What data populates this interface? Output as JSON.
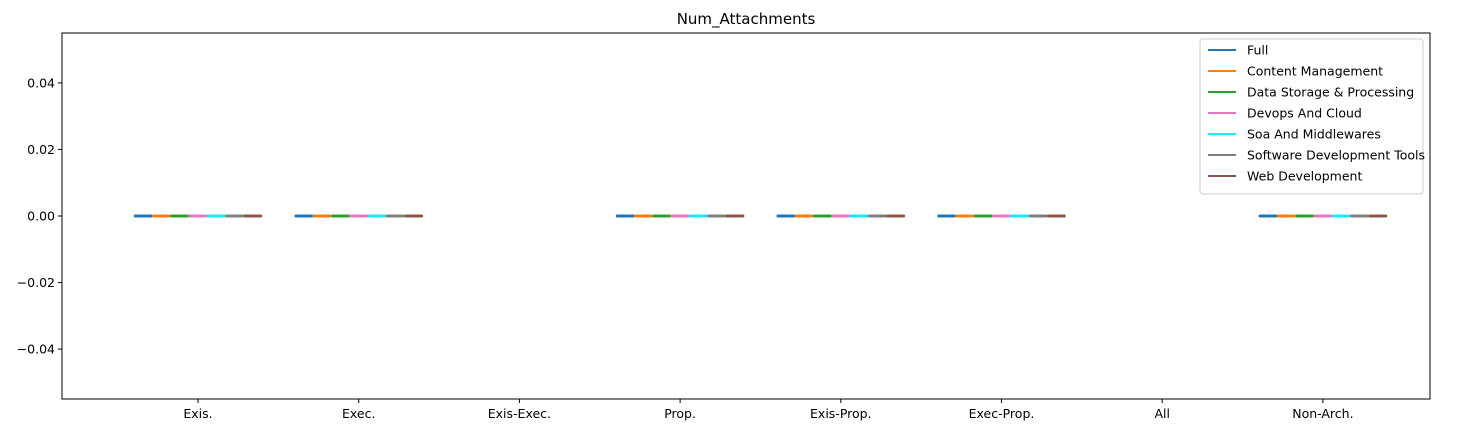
{
  "chart_data": {
    "type": "box",
    "title": "Num_Attachments",
    "xlabel": "",
    "ylabel": "",
    "categories": [
      "Exis.",
      "Exec.",
      "Exis-Exec.",
      "Prop.",
      "Exis-Prop.",
      "Exec-Prop.",
      "All",
      "Non-Arch."
    ],
    "ylim": [
      -0.055,
      0.055
    ],
    "yticks": [
      0.04,
      0.02,
      0.0,
      -0.02,
      -0.04
    ],
    "ytick_labels": [
      "0.04",
      "0.02",
      "0.00",
      "−0.02",
      "−0.04"
    ],
    "grid": false,
    "legend_position": "upper right",
    "series": [
      {
        "name": "Full",
        "color": "#1f77b4",
        "values": [
          0,
          0,
          null,
          0,
          0,
          0,
          null,
          0
        ]
      },
      {
        "name": "Content Management",
        "color": "#ff7f0e",
        "values": [
          0,
          0,
          null,
          0,
          0,
          0,
          null,
          0
        ]
      },
      {
        "name": "Data Storage & Processing",
        "color": "#2ca02c",
        "values": [
          0,
          0,
          null,
          0,
          0,
          0,
          null,
          0
        ]
      },
      {
        "name": "Devops And Cloud",
        "color": "#e377c2",
        "values": [
          0,
          0,
          null,
          0,
          0,
          0,
          null,
          0
        ]
      },
      {
        "name": "Soa And Middlewares",
        "color": "#17e9f5",
        "values": [
          0,
          0,
          null,
          0,
          0,
          0,
          null,
          0
        ]
      },
      {
        "name": "Software Development Tools",
        "color": "#7f7f7f",
        "values": [
          0,
          0,
          null,
          0,
          0,
          0,
          null,
          0
        ]
      },
      {
        "name": "Web Development",
        "color": "#8c564b",
        "values": [
          0,
          0,
          null,
          0,
          0,
          0,
          null,
          0
        ]
      }
    ]
  }
}
